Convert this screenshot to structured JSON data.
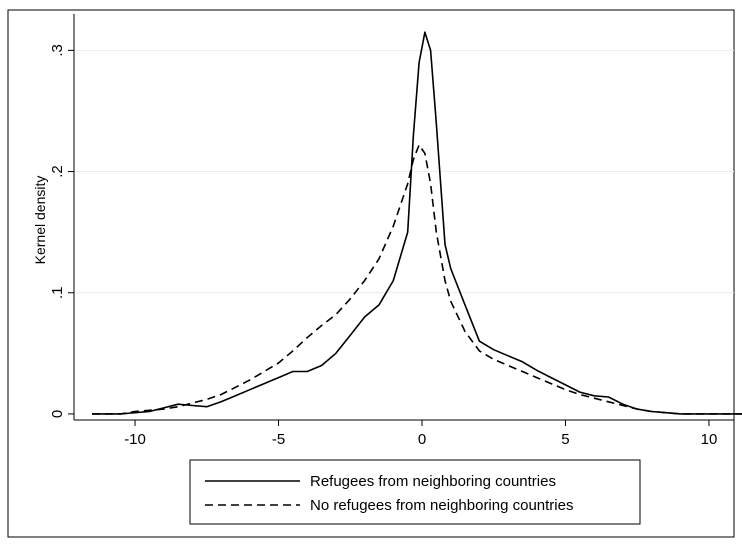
{
  "chart_data": {
    "type": "line",
    "title": "",
    "xlabel": "",
    "ylabel": "Kernel density",
    "xlim": [
      -11.5,
      11.5
    ],
    "ylim": [
      -0.005,
      0.33
    ],
    "x_ticks": [
      -10,
      -5,
      0,
      5,
      10
    ],
    "x_tick_labels": [
      "-10",
      "-5",
      "0",
      "5",
      "10"
    ],
    "y_ticks": [
      0,
      0.1,
      0.2,
      0.3
    ],
    "y_tick_labels": [
      "0",
      ".1",
      ".2",
      ".3"
    ],
    "grid": "horizontal",
    "legend_position": "bottom",
    "series": [
      {
        "name": "Refugees from neighboring countries",
        "style": "solid",
        "color": "#000000",
        "x": [
          -11.5,
          -10.5,
          -10,
          -9.5,
          -9,
          -8.5,
          -8,
          -7.5,
          -7,
          -6.5,
          -6,
          -5.5,
          -5,
          -4.5,
          -4,
          -3.5,
          -3,
          -2.5,
          -2,
          -1.5,
          -1,
          -0.5,
          -0.3,
          -0.1,
          0.1,
          0.3,
          0.5,
          0.8,
          1.0,
          1.5,
          2.0,
          2.5,
          3,
          3.5,
          4,
          4.5,
          5,
          5.5,
          6,
          6.5,
          7,
          7.5,
          8,
          8.5,
          9,
          9.5,
          10,
          11.5
        ],
        "y": [
          0,
          0,
          0.001,
          0.002,
          0.005,
          0.008,
          0.007,
          0.006,
          0.01,
          0.015,
          0.02,
          0.025,
          0.03,
          0.035,
          0.035,
          0.04,
          0.05,
          0.065,
          0.08,
          0.09,
          0.11,
          0.15,
          0.23,
          0.29,
          0.315,
          0.3,
          0.24,
          0.14,
          0.12,
          0.09,
          0.06,
          0.053,
          0.048,
          0.043,
          0.036,
          0.03,
          0.024,
          0.018,
          0.015,
          0.014,
          0.008,
          0.004,
          0.002,
          0.001,
          0,
          0,
          0,
          0
        ]
      },
      {
        "name": "No refugees from neighboring countries",
        "style": "dashed",
        "color": "#000000",
        "x": [
          -11.5,
          -10.5,
          -10,
          -9.5,
          -9,
          -8.5,
          -8,
          -7.5,
          -7,
          -6.5,
          -6,
          -5.5,
          -5,
          -4.5,
          -4,
          -3.5,
          -3,
          -2.5,
          -2,
          -1.5,
          -1,
          -0.5,
          -0.3,
          -0.1,
          0.1,
          0.3,
          0.5,
          0.8,
          1.0,
          1.5,
          2.0,
          2.5,
          3,
          3.5,
          4,
          4.5,
          5,
          5.5,
          6,
          6.5,
          7,
          7.5,
          8,
          8.5,
          9,
          9.5,
          10,
          11.5
        ],
        "y": [
          0,
          0,
          0.002,
          0.003,
          0.004,
          0.006,
          0.009,
          0.012,
          0.016,
          0.022,
          0.028,
          0.035,
          0.042,
          0.052,
          0.063,
          0.073,
          0.082,
          0.095,
          0.11,
          0.128,
          0.155,
          0.19,
          0.21,
          0.222,
          0.215,
          0.19,
          0.15,
          0.11,
          0.093,
          0.068,
          0.052,
          0.045,
          0.04,
          0.035,
          0.03,
          0.025,
          0.02,
          0.016,
          0.013,
          0.01,
          0.007,
          0.004,
          0.002,
          0.001,
          0,
          0,
          0,
          0
        ]
      }
    ]
  }
}
